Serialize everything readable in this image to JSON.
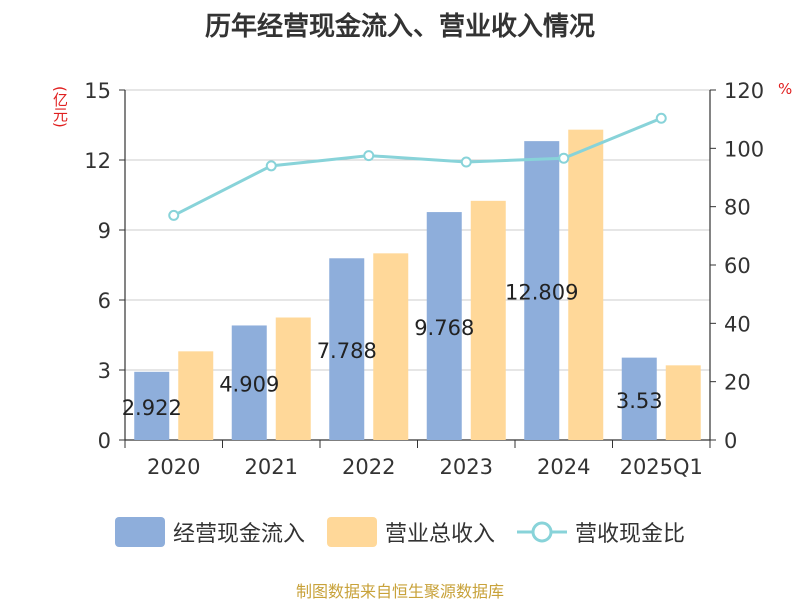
{
  "title": "历年经营现金流入、营业收入情况",
  "units": {
    "left": "(亿元)",
    "right": "%"
  },
  "source": "制图数据来自恒生聚源数据库",
  "colors": {
    "cash_inflow": "#8eaedb",
    "revenue": "#ffd899",
    "ratio": "#88d3d9",
    "grid": "#cccccc",
    "axis": "#333333",
    "unit_red": "#e02020"
  },
  "chart_data": {
    "type": "bar",
    "categories": [
      "2020",
      "2021",
      "2022",
      "2023",
      "2024",
      "2025Q1"
    ],
    "series": [
      {
        "name": "经营现金流入",
        "type": "bar",
        "axis": "left",
        "values": [
          2.922,
          4.909,
          7.788,
          9.768,
          12.809,
          3.53
        ],
        "labels": [
          "2.922",
          "4.909",
          "7.788",
          "9.768",
          "12.809",
          "3.53"
        ]
      },
      {
        "name": "营业总收入",
        "type": "bar",
        "axis": "left",
        "values": [
          3.8,
          5.25,
          8.0,
          10.25,
          13.3,
          3.2
        ]
      },
      {
        "name": "营收现金比",
        "type": "line",
        "axis": "right",
        "values": [
          77,
          94,
          97.5,
          95.3,
          96.6,
          110.3
        ]
      }
    ],
    "y_left": {
      "min": 0,
      "max": 15,
      "ticks": [
        0,
        3,
        6,
        9,
        12,
        15
      ]
    },
    "y_right": {
      "min": 0,
      "max": 120,
      "ticks": [
        0,
        20,
        40,
        60,
        80,
        100,
        120
      ]
    },
    "grid": true,
    "legend": "bottom"
  }
}
